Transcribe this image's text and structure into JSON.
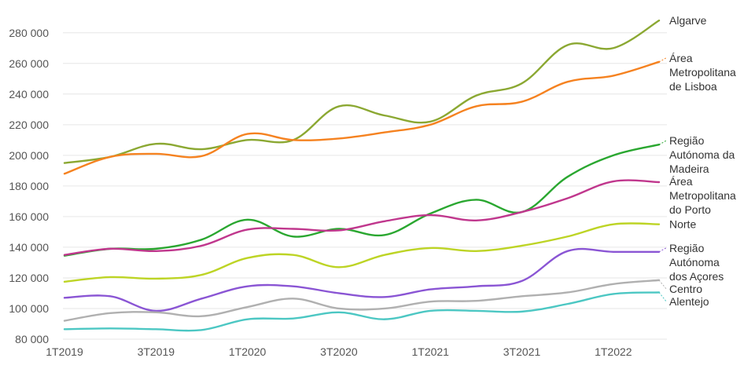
{
  "chart_data": {
    "type": "line",
    "title": "",
    "xlabel": "",
    "ylabel": "",
    "ylim": [
      80000,
      290000
    ],
    "y_ticks": [
      80000,
      100000,
      120000,
      140000,
      160000,
      180000,
      200000,
      220000,
      240000,
      260000,
      280000
    ],
    "y_tick_labels": [
      "80 000",
      "100 000",
      "120 000",
      "140 000",
      "160 000",
      "180 000",
      "200 000",
      "220 000",
      "240 000",
      "260 000",
      "280 000"
    ],
    "x": [
      "1T2019",
      "2T2019",
      "3T2019",
      "4T2019",
      "1T2020",
      "2T2020",
      "3T2020",
      "4T2020",
      "1T2021",
      "2T2021",
      "3T2021",
      "4T2021",
      "1T2022",
      "2T2022"
    ],
    "x_tick_labels": [
      "1T2019",
      "3T2019",
      "1T2020",
      "3T2020",
      "1T2021",
      "3T2021",
      "1T2022"
    ],
    "grid": true,
    "legend_placement": "right",
    "series": [
      {
        "name": "Algarve",
        "color": "#8ba832",
        "values": [
          195000,
          199000,
          207500,
          204000,
          210000,
          210000,
          232000,
          226000,
          222000,
          239000,
          247000,
          272000,
          270000,
          288000
        ]
      },
      {
        "name": "Área Metropolitana de Lisboa",
        "color": "#f58220",
        "values": [
          188000,
          199000,
          201000,
          199500,
          214000,
          210000,
          211000,
          215000,
          220000,
          232000,
          235000,
          248000,
          252000,
          261000
        ]
      },
      {
        "name": "Região Autónoma da Madeira",
        "color": "#2aa730",
        "values": [
          134500,
          139000,
          139000,
          145000,
          158000,
          147000,
          152000,
          148000,
          162000,
          171000,
          163000,
          186000,
          200000,
          207000
        ]
      },
      {
        "name": "Área Metropolitana do Porto",
        "color": "#c0378d",
        "values": [
          135000,
          139000,
          137500,
          141000,
          151500,
          152000,
          151000,
          157000,
          161000,
          157500,
          163000,
          172000,
          183000,
          182500
        ]
      },
      {
        "name": "Norte",
        "color": "#bdd425",
        "values": [
          117500,
          120500,
          119500,
          122000,
          133000,
          135000,
          127000,
          135000,
          139500,
          137500,
          141000,
          147000,
          155000,
          155000
        ]
      },
      {
        "name": "Região Autónoma dos Açores",
        "color": "#8a55d4",
        "values": [
          107000,
          108000,
          98500,
          106500,
          114500,
          114500,
          110000,
          107500,
          112500,
          114500,
          118000,
          137500,
          137000,
          137000
        ]
      },
      {
        "name": "Centro",
        "color": "#b0b0b0",
        "values": [
          92000,
          97000,
          97500,
          95000,
          101000,
          106500,
          100000,
          100000,
          104500,
          105000,
          108000,
          110500,
          116000,
          118500
        ]
      },
      {
        "name": "Alentejo",
        "color": "#4cc7c3",
        "values": [
          86500,
          87000,
          86500,
          86000,
          93000,
          93500,
          97500,
          93000,
          98500,
          98500,
          98000,
          103000,
          109500,
          110500
        ]
      }
    ],
    "legend_labels": [
      {
        "lines": [
          "Algarve"
        ]
      },
      {
        "lines": [
          "Área",
          "Metropolitana",
          "de Lisboa"
        ]
      },
      {
        "lines": [
          "Região",
          "Autónoma da",
          "Madeira"
        ]
      },
      {
        "lines": [
          "Área",
          "Metropolitana",
          "do Porto"
        ]
      },
      {
        "lines": [
          "Norte"
        ]
      },
      {
        "lines": [
          "Região",
          "Autónoma",
          "dos Açores"
        ]
      },
      {
        "lines": [
          "Centro"
        ]
      },
      {
        "lines": [
          "Alentejo"
        ]
      }
    ]
  }
}
